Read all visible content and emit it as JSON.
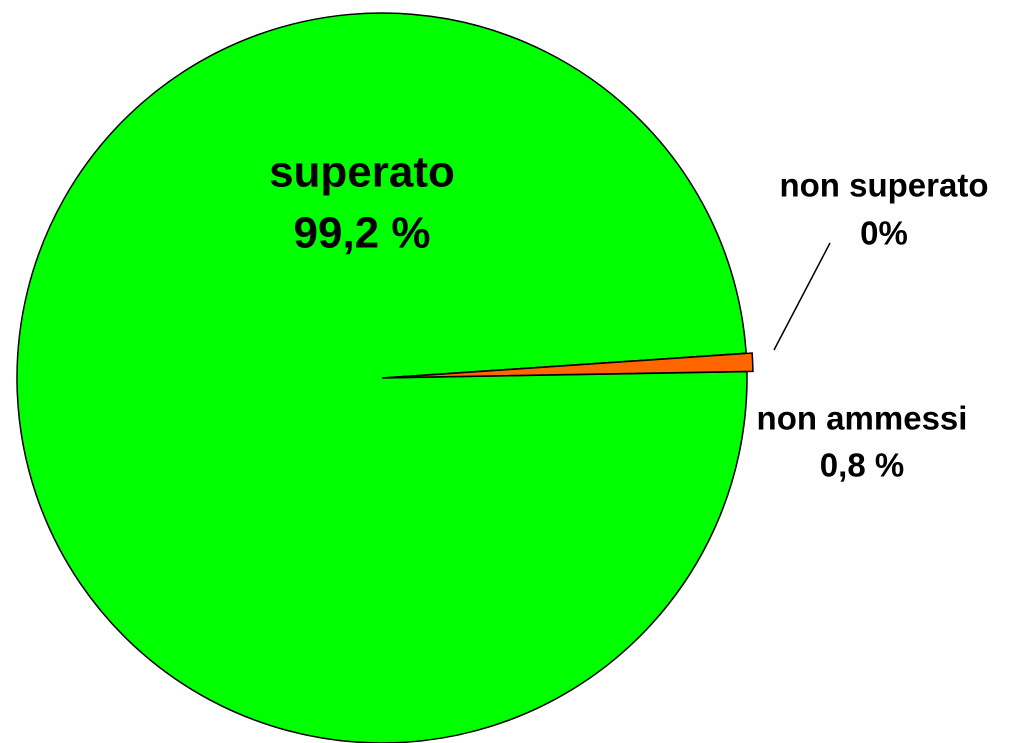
{
  "chart_data": {
    "type": "pie",
    "categories": [
      "superato",
      "non superato",
      "non ammessi"
    ],
    "values": [
      99.2,
      0,
      0.8
    ],
    "value_labels": [
      "99,2 %",
      "0%",
      "0,8 %"
    ],
    "colors": [
      "#00ff00",
      "#ff0000",
      "#ff6600"
    ]
  }
}
